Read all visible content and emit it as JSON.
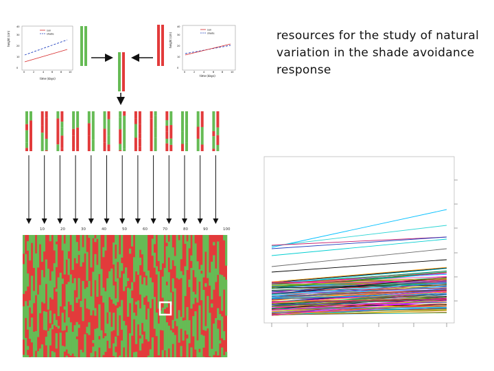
{
  "title": "resources for the study of natural variation in the shade avoidance response",
  "colors": {
    "red": "#e23b3b",
    "green": "#66bb55",
    "grid_green": "#66bb55",
    "arrow": "#111111",
    "highlight": "#ffffff",
    "legend_sun": "#d62728",
    "legend_shade": "#1f3fbf"
  },
  "left_plot": {
    "ylabel": "height (cm)",
    "xlabel": "time (days)",
    "x_ticks": [
      "0",
      "2",
      "4",
      "6",
      "8",
      "10"
    ],
    "y_ticks": [
      "0",
      "10",
      "20",
      "30",
      "40"
    ],
    "legend": [
      "sun",
      "shade"
    ]
  },
  "right_plot": {
    "ylabel": "height (cm)",
    "xlabel": "time (days)",
    "x_ticks": [
      "0",
      "2",
      "4",
      "6",
      "8",
      "10"
    ],
    "y_ticks": [
      "0",
      "10",
      "20",
      "30",
      "40"
    ],
    "legend": [
      "sun",
      "shade"
    ]
  },
  "ril_axis": {
    "ticks": [
      "10",
      "20",
      "30",
      "40",
      "50",
      "60",
      "70",
      "80",
      "90",
      "100"
    ]
  },
  "parent_icons": [
    "parent-left",
    "parent-right",
    "f1-hybrid"
  ],
  "ril_count": 13
}
